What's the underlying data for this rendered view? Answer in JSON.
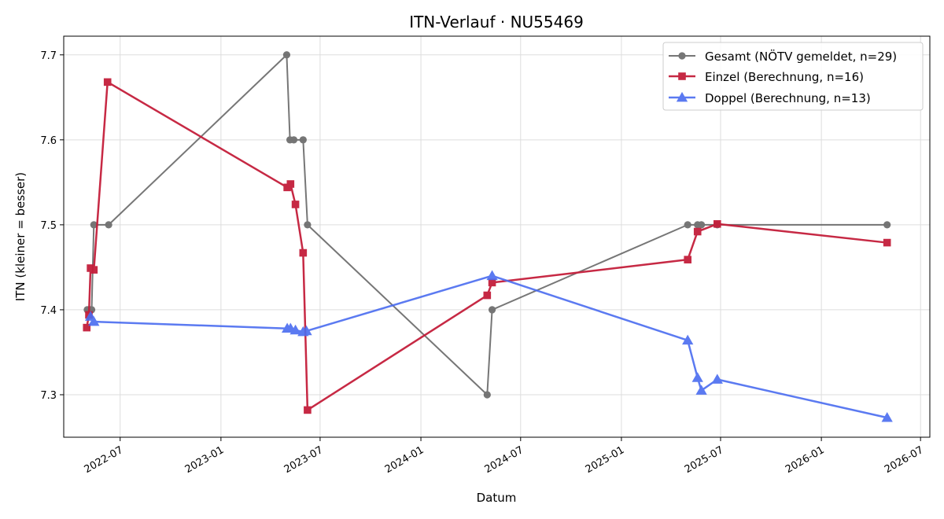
{
  "chart_data": {
    "type": "line",
    "title": "ITN-Verlauf · NU55469",
    "xlabel": "Datum",
    "ylabel": "ITN  (kleiner = besser)",
    "x_ticks": [
      "2022-07",
      "2023-01",
      "2023-07",
      "2024-01",
      "2024-07",
      "2025-01",
      "2025-07",
      "2026-01",
      "2026-07"
    ],
    "y_ticks": [
      "7.3",
      "7.4",
      "7.5",
      "7.6",
      "7.7"
    ],
    "xlim": [
      "2022-03-20",
      "2026-07-18"
    ],
    "ylim": [
      7.25,
      7.722
    ],
    "grid": true,
    "legend_position": "top-right",
    "series": [
      {
        "name": "Gesamt (NÖTV gemeldet, n=29)",
        "color": "#555555",
        "marker": "circle",
        "points": [
          [
            "2022-05-02",
            7.4
          ],
          [
            "2022-05-05",
            7.4
          ],
          [
            "2022-05-07",
            7.4
          ],
          [
            "2022-05-10",
            7.4
          ],
          [
            "2022-05-14",
            7.5
          ],
          [
            "2022-06-10",
            7.5
          ],
          [
            "2023-05-01",
            7.7
          ],
          [
            "2023-05-07",
            7.6
          ],
          [
            "2023-05-14",
            7.6
          ],
          [
            "2023-05-31",
            7.6
          ],
          [
            "2023-06-08",
            7.5
          ],
          [
            "2024-05-01",
            7.3
          ],
          [
            "2024-05-10",
            7.4
          ],
          [
            "2025-05-02",
            7.5
          ],
          [
            "2025-05-20",
            7.5
          ],
          [
            "2025-05-27",
            7.5
          ],
          [
            "2025-06-25",
            7.5
          ],
          [
            "2026-05-01",
            7.5
          ]
        ]
      },
      {
        "name": "Einzel (Berechnung, n=16)",
        "color": "#c41e3a",
        "marker": "square",
        "points": [
          [
            "2022-05-01",
            7.379
          ],
          [
            "2022-05-05",
            7.394
          ],
          [
            "2022-05-08",
            7.449
          ],
          [
            "2022-05-14",
            7.447
          ],
          [
            "2022-06-08",
            7.668
          ],
          [
            "2023-05-02",
            7.544
          ],
          [
            "2023-05-08",
            7.548
          ],
          [
            "2023-05-17",
            7.524
          ],
          [
            "2023-05-31",
            7.467
          ],
          [
            "2023-06-08",
            7.282
          ],
          [
            "2024-05-01",
            7.417
          ],
          [
            "2024-05-10",
            7.432
          ],
          [
            "2025-05-02",
            7.459
          ],
          [
            "2025-05-20",
            7.492
          ],
          [
            "2025-06-25",
            7.501
          ],
          [
            "2026-05-01",
            7.479
          ]
        ]
      },
      {
        "name": "Doppel (Berechnung, n=13)",
        "color": "#4a6cf0",
        "marker": "triangle",
        "points": [
          [
            "2022-05-08",
            7.392
          ],
          [
            "2022-05-14",
            7.386
          ],
          [
            "2023-05-02",
            7.378
          ],
          [
            "2023-05-08",
            7.378
          ],
          [
            "2023-05-17",
            7.376
          ],
          [
            "2023-05-31",
            7.374
          ],
          [
            "2023-06-06",
            7.375
          ],
          [
            "2024-05-10",
            7.44
          ],
          [
            "2025-05-02",
            7.364
          ],
          [
            "2025-05-20",
            7.32
          ],
          [
            "2025-05-27",
            7.305
          ],
          [
            "2025-06-25",
            7.318
          ],
          [
            "2026-05-01",
            7.273
          ]
        ]
      }
    ]
  }
}
